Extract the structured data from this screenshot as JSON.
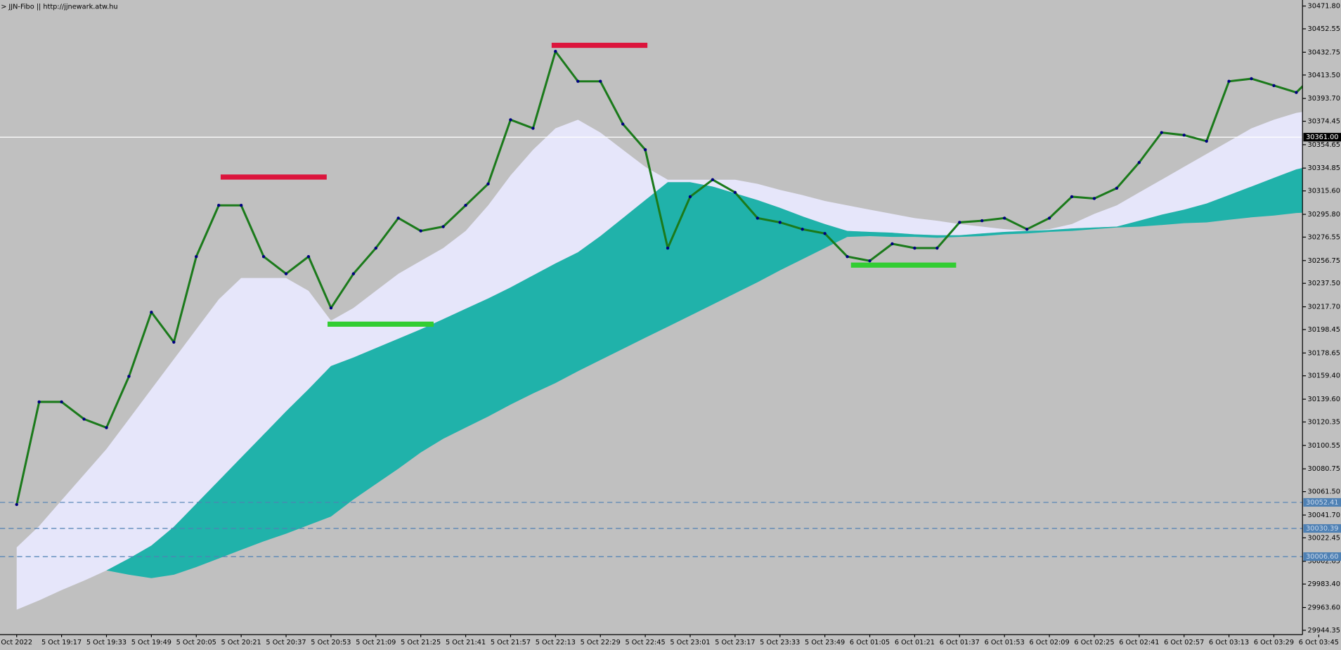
{
  "chart_data": {
    "type": "line",
    "title": "> JJN-Fibo || http://jjnewark.atw.hu",
    "categories": [
      "Oct 2022",
      null,
      "5 Oct 19:17",
      null,
      "5 Oct 19:33",
      null,
      "5 Oct 19:49",
      null,
      "5 Oct 20:05",
      null,
      "5 Oct 20:21",
      null,
      "5 Oct 20:37",
      null,
      "5 Oct 20:53",
      null,
      "5 Oct 21:09",
      null,
      "5 Oct 21:25",
      null,
      "5 Oct 21:41",
      null,
      "5 Oct 21:57",
      null,
      "5 Oct 22:13",
      null,
      "5 Oct 22:29",
      null,
      "5 Oct 22:45",
      null,
      "5 Oct 23:01",
      null,
      "5 Oct 23:17",
      null,
      "5 Oct 23:33",
      null,
      "5 Oct 23:49",
      null,
      "6 Oct 01:05",
      null,
      "6 Oct 01:21",
      null,
      "6 Oct 01:37",
      null,
      "6 Oct 01:53",
      null,
      "6 Oct 02:09",
      null,
      "6 Oct 02:25",
      null,
      "6 Oct 02:41",
      null,
      "6 Oct 02:57",
      null,
      "6 Oct 03:13",
      null,
      "6 Oct 03:29",
      null,
      "6 Oct 03:45"
    ],
    "series": [
      {
        "color": "#1b7a1b",
        "values": [
          30050.6,
          30137.3,
          30137.3,
          30122.8,
          30115.6,
          30158.9,
          30213.1,
          30187.8,
          30260.1,
          30303.4,
          30303.4,
          30260.1,
          30245.6,
          30260.1,
          30216.7,
          30245.6,
          30267.3,
          30292.6,
          30281.8,
          30285.4,
          30303.4,
          30321.5,
          30375.7,
          30368.5,
          30433.5,
          30408.2,
          30408.2,
          30372.1,
          30350.4,
          30267.3,
          30310.7,
          30325.1,
          30314.3,
          30292.6,
          30289.0,
          30283.2,
          30279.6,
          30260.1,
          30256.5,
          30270.9,
          30267.3,
          30267.3,
          30289.0,
          30290.4,
          30292.6,
          30283.2,
          30292.6,
          30310.7,
          30309.2,
          30317.9,
          30339.6,
          30364.9,
          30362.7,
          30357.6,
          30408.2,
          30410.4,
          30404.6,
          30398.8,
          30417.6
        ]
      }
    ],
    "cloud": {
      "colors": [
        "#e6e6fa",
        "#20b2aa"
      ],
      "upper": [
        30014.4,
        30032.5,
        30054.2,
        30075.9,
        30097.5,
        30122.8,
        30148.1,
        30173.4,
        30198.7,
        30224.0,
        30242.0,
        30242.0,
        30242.0,
        30231.2,
        30205.9,
        30216.7,
        30231.2,
        30245.6,
        30256.5,
        30267.3,
        30281.8,
        30303.4,
        30328.7,
        30350.4,
        30368.5,
        30375.7,
        30364.9,
        30350.4,
        30336.0,
        30325.1,
        30325.1,
        30325.1,
        30325.1,
        30321.5,
        30316.5,
        30312.1,
        30307.1,
        30303.4,
        30299.8,
        30296.2,
        30292.6,
        30290.4,
        30287.6,
        30285.4,
        30283.2,
        30281.8,
        30283.2,
        30287.6,
        30296.2,
        30303.4,
        30314.3,
        30325.1,
        30336.0,
        30346.8,
        30357.6,
        30368.5,
        30375.7,
        30381.5,
        30384.4
      ],
      "middle": [
        29961.7,
        29969.6,
        29978.3,
        29986.3,
        29994.9,
        30005.0,
        30015.9,
        30031.8,
        30051.3,
        30070.8,
        30090.3,
        30109.8,
        30129.3,
        30148.1,
        30167.6,
        30174.8,
        30182.8,
        30190.7,
        30198.7,
        30207.3,
        30216.0,
        30224.7,
        30234.1,
        30244.2,
        30254.3,
        30263.7,
        30277.4,
        30292.6,
        30307.8,
        30323.0,
        30323.0,
        30319.3,
        30313.6,
        30307.8,
        30301.3,
        30294.1,
        30287.6,
        30281.8,
        30281.0,
        30280.3,
        30278.9,
        30278.2,
        30278.2,
        30279.6,
        30281.0,
        30281.8,
        30282.5,
        30283.9,
        30284.7,
        30285.4,
        30290.4,
        30295.5,
        30299.8,
        30304.9,
        30312.1,
        30319.3,
        30326.6,
        30333.8,
        30338.1
      ],
      "lower": [
        29961.7,
        29969.6,
        29978.3,
        29986.3,
        29994.9,
        29991.3,
        29988.4,
        29991.3,
        29997.8,
        30005.0,
        30012.3,
        30019.5,
        30026.0,
        30033.2,
        30040.4,
        30054.9,
        30067.9,
        30080.9,
        30094.6,
        30106.2,
        30115.6,
        30125.0,
        30135.1,
        30144.5,
        30153.2,
        30163.3,
        30172.7,
        30182.1,
        30191.5,
        30200.8,
        30210.2,
        30219.6,
        30229.0,
        30238.4,
        30248.5,
        30257.9,
        30267.3,
        30276.7,
        30277.4,
        30276.7,
        30276.7,
        30276.0,
        30276.7,
        30277.4,
        30278.9,
        30279.6,
        30281.0,
        30281.8,
        30283.2,
        30284.7,
        30285.4,
        30286.8,
        30288.3,
        30289.0,
        30291.2,
        30293.3,
        30294.8,
        30296.9,
        30297.7
      ]
    },
    "levels": [
      {
        "value": 30327.3,
        "color": "#dc143c"
      },
      {
        "value": 30438.6,
        "color": "#dc143c"
      },
      {
        "value": 30203.0,
        "color": "#32cd32"
      },
      {
        "value": 30252.9,
        "color": "#32cd32"
      }
    ],
    "hlines": [
      {
        "value": 30361,
        "label": "30361.00",
        "color": "#ffffff",
        "dash": false
      },
      {
        "value": 30052.41,
        "label": "30052.41",
        "color": "#4f81b4",
        "dash": true
      },
      {
        "value": 30030.39,
        "label": "30030.39",
        "color": "#4f81b4",
        "dash": true
      },
      {
        "value": 30006.6,
        "label": "30006.60",
        "color": "#4f81b4",
        "dash": true
      }
    ],
    "ylim": [
      29940.7,
      30476.9
    ],
    "yticks": [
      {
        "value": 30471.8,
        "label": "30471.80"
      },
      30452.55,
      30432.75,
      {
        "value": 30413.5,
        "label": "30413.50"
      },
      {
        "value": 30393.7,
        "label": "30393.70"
      },
      30374.45,
      30354.65,
      30334.85,
      {
        "value": 30315.6,
        "label": "30315.60"
      },
      {
        "value": 30295.8,
        "label": "30295.80"
      },
      30276.55,
      30256.75,
      {
        "value": 30237.5,
        "label": "30237.50"
      },
      {
        "value": 30217.7,
        "label": "30217.70"
      },
      30198.45,
      30178.65,
      {
        "value": 30159.4,
        "label": "30159.40"
      },
      {
        "value": 30139.6,
        "label": "30139.60"
      },
      30120.35,
      30100.55,
      30080.75,
      {
        "value": 30061.5,
        "label": "30061.50"
      },
      {
        "value": 30041.7,
        "label": "30041.70"
      },
      30022.45,
      30002.65,
      {
        "value": 29983.4,
        "label": "29983.40"
      },
      {
        "value": 29963.6,
        "label": "29963.60"
      },
      29944.35
    ]
  }
}
